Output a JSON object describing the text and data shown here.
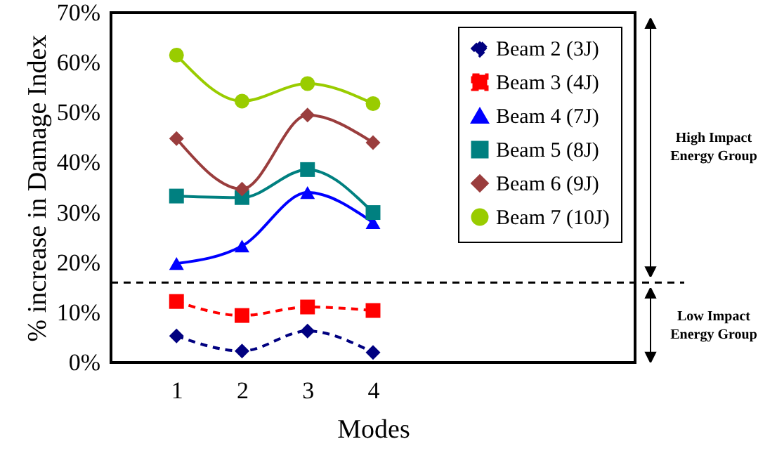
{
  "chart_data": {
    "type": "line",
    "xlabel": "Modes",
    "ylabel": "% increase in Damage Index",
    "x": [
      1,
      2,
      3,
      4
    ],
    "xlim": [
      0,
      8
    ],
    "xticks": [
      1,
      2,
      3,
      4
    ],
    "ylim": [
      0,
      70
    ],
    "yticks": [
      {
        "value": 0,
        "label": "0%"
      },
      {
        "value": 10,
        "label": "10%"
      },
      {
        "value": 20,
        "label": "20%"
      },
      {
        "value": 30,
        "label": "30%"
      },
      {
        "value": 40,
        "label": "40%"
      },
      {
        "value": 50,
        "label": "50%"
      },
      {
        "value": 60,
        "label": "60%"
      },
      {
        "value": 70,
        "label": "70%"
      }
    ],
    "series": [
      {
        "name": "Beam 2 (3J)",
        "color": "#000080",
        "marker": "diamond",
        "line_style": "dashed",
        "values": [
          5.3,
          2.3,
          6.3,
          2.0
        ]
      },
      {
        "name": "Beam 3 (4J)",
        "color": "#ff0000",
        "marker": "square",
        "line_style": "dashed",
        "values": [
          12.2,
          9.4,
          11.1,
          10.4
        ]
      },
      {
        "name": "Beam 4 (7J)",
        "color": "#0000ff",
        "marker": "triangle",
        "line_style": "solid",
        "values": [
          19.8,
          23.3,
          34.0,
          28.0
        ]
      },
      {
        "name": "Beam 5 (8J)",
        "color": "#008080",
        "marker": "square",
        "line_style": "solid",
        "values": [
          33.3,
          33.0,
          38.6,
          30.0
        ]
      },
      {
        "name": "Beam 6 (9J)",
        "color": "#9a3d3d",
        "marker": "diamond",
        "line_style": "solid",
        "values": [
          44.8,
          34.7,
          49.5,
          44.0
        ]
      },
      {
        "name": "Beam 7 (10J)",
        "color": "#99cc00",
        "marker": "circle",
        "line_style": "solid",
        "values": [
          61.5,
          52.3,
          55.8,
          51.8
        ]
      }
    ],
    "ref_lines": [
      {
        "axis": "y",
        "value": 16,
        "line_style": "dashed",
        "color": "#000000"
      }
    ],
    "annotations": [
      "High Impact Energy Group",
      "Low Impact Energy Group"
    ],
    "legend": "top right",
    "grid": false
  }
}
